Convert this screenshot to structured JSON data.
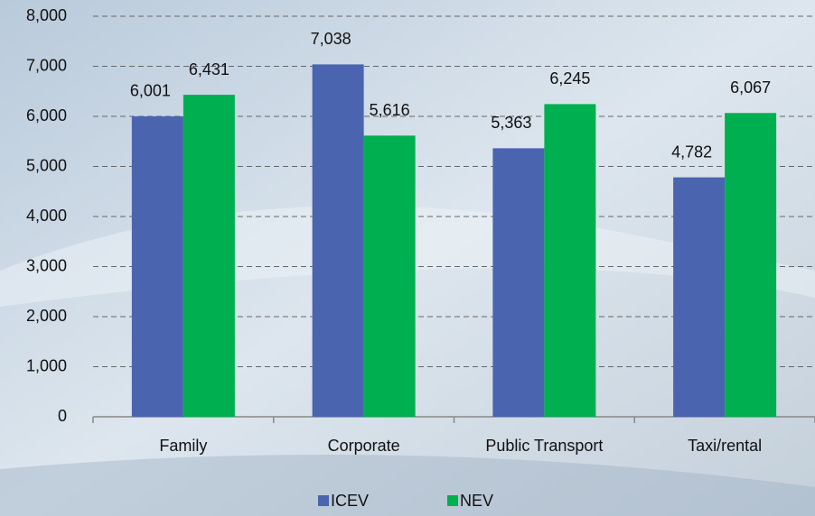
{
  "chart_data": {
    "type": "bar",
    "categories": [
      "Family",
      "Corporate",
      "Public Transport",
      "Taxi/rental"
    ],
    "series": [
      {
        "name": "ICEV",
        "color": "#4a64b0",
        "values": [
          6001,
          7038,
          5363,
          4782
        ],
        "value_labels": [
          "6,001",
          "7,038",
          "5,363",
          "4,782"
        ]
      },
      {
        "name": "NEV",
        "color": "#00b050",
        "values": [
          6431,
          5616,
          6245,
          6067
        ],
        "value_labels": [
          "6,431",
          "5,616",
          "6,245",
          "6,067"
        ]
      }
    ],
    "ylim": [
      0,
      8000
    ],
    "yticks": [
      0,
      {
        "value": 1000,
        "label": "1,000"
      },
      {
        "value": 2000,
        "label": "2,000"
      },
      {
        "value": 3000,
        "label": "3,000"
      },
      {
        "value": 4000,
        "label": "4,000"
      },
      {
        "value": 5000,
        "label": "5,000"
      },
      {
        "value": 6000,
        "label": "6,000"
      },
      {
        "value": 7000,
        "label": "7,000"
      },
      {
        "value": 8000,
        "label": "8,000"
      }
    ],
    "grid": true,
    "legend": "bottom"
  }
}
